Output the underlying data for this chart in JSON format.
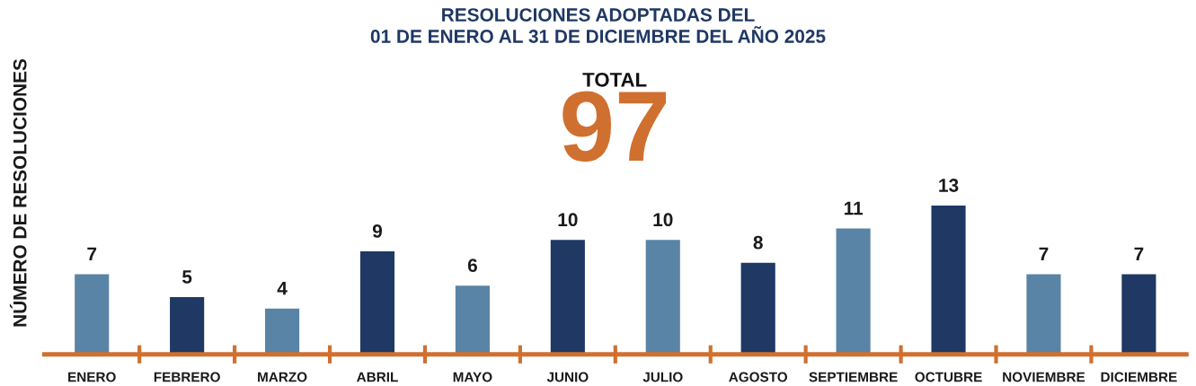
{
  "chart_data": {
    "type": "bar",
    "title": "RESOLUCIONES ADOPTADAS DEL\n01 DE ENERO AL 31 DE DICIEMBRE DEL AÑO 2025",
    "ylabel": "NÚMERO DE RESOLUCIONES",
    "annotations": [
      "TOTAL",
      "97"
    ],
    "categories": [
      "ENERO",
      "FEBRERO",
      "MARZO",
      "ABRIL",
      "MAYO",
      "JUNIO",
      "JULIO",
      "AGOSTO",
      "SEPTIEMBRE",
      "OCTUBRE",
      "NOVIEMBRE",
      "DICIEMBRE"
    ],
    "values": [
      7,
      5,
      4,
      9,
      6,
      10,
      10,
      8,
      11,
      13,
      7,
      7
    ],
    "colors": [
      "#5a84a6",
      "#1f3864",
      "#5a84a6",
      "#1f3864",
      "#5a84a6",
      "#1f3864",
      "#5a84a6",
      "#1f3864",
      "#5a84a6",
      "#1f3864",
      "#5a84a6",
      "#1f3864"
    ],
    "data_labels": true,
    "grid": false,
    "legend": false
  }
}
